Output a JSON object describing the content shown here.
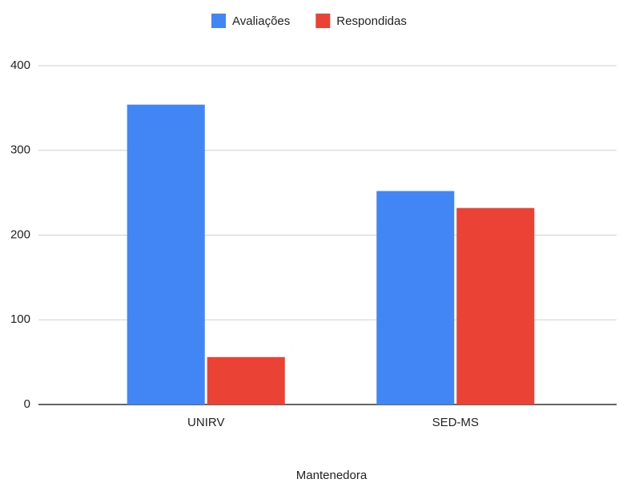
{
  "chart_data": {
    "type": "bar",
    "x_label": "Mantenedora",
    "categories": [
      "UNIRV",
      "SED-MS"
    ],
    "series": [
      {
        "name": "Avaliações",
        "color": "#4285f4",
        "values": [
          354,
          252
        ]
      },
      {
        "name": "Respondidas",
        "color": "#ea4335",
        "values": [
          56,
          232
        ]
      }
    ],
    "ylim": [
      0,
      400
    ],
    "yticks": [
      0,
      100,
      200,
      300,
      400
    ],
    "grid": true,
    "legend": "top"
  }
}
